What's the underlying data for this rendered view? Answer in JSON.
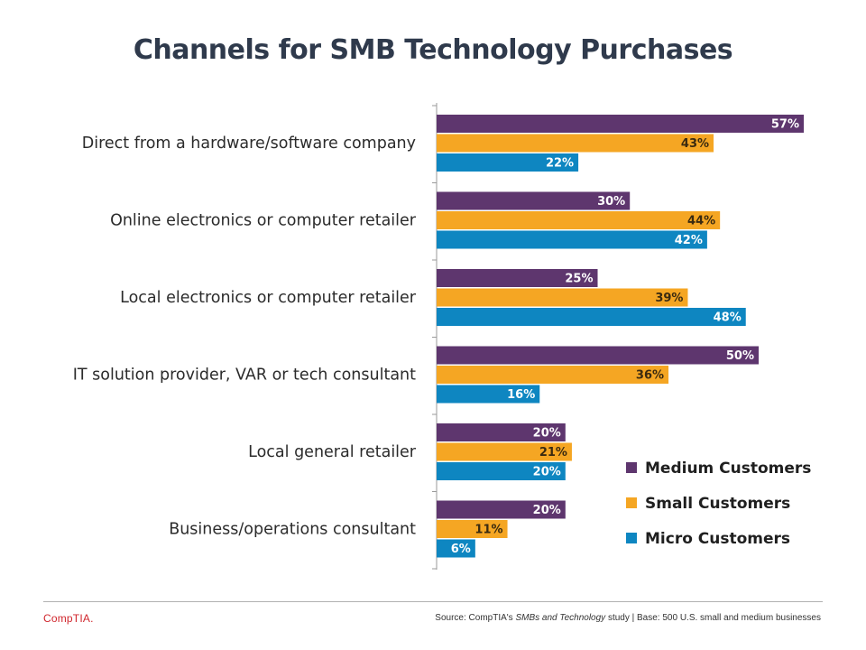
{
  "chart_data": {
    "type": "bar",
    "orientation": "horizontal",
    "title": "Channels for SMB Technology Purchases",
    "categories": [
      "Direct from a hardware/software company",
      "Online electronics or computer retailer",
      "Local electronics or computer retailer",
      "IT solution provider, VAR or tech consultant",
      "Local general retailer",
      "Business/operations consultant"
    ],
    "series": [
      {
        "name": "Medium Customers",
        "color": "#5e366e",
        "label_color": "#ffffff",
        "values": [
          57,
          30,
          25,
          50,
          20,
          20
        ]
      },
      {
        "name": "Small Customers",
        "color": "#f5a623",
        "label_color": "#3a2a10",
        "values": [
          43,
          44,
          39,
          36,
          21,
          11
        ]
      },
      {
        "name": "Micro Customers",
        "color": "#0e86c1",
        "label_color": "#ffffff",
        "values": [
          22,
          42,
          48,
          16,
          20,
          6
        ]
      }
    ],
    "value_suffix": "%",
    "xlim": [
      0,
      57
    ],
    "legend_position": "bottom-right",
    "grid": false
  },
  "footer": {
    "logo": "CompTIA.",
    "source_prefix": "Source: CompTIA's ",
    "source_study": "SMBs and Technology",
    "source_suffix": " study | Base: 500 U.S. small and medium businesses"
  }
}
